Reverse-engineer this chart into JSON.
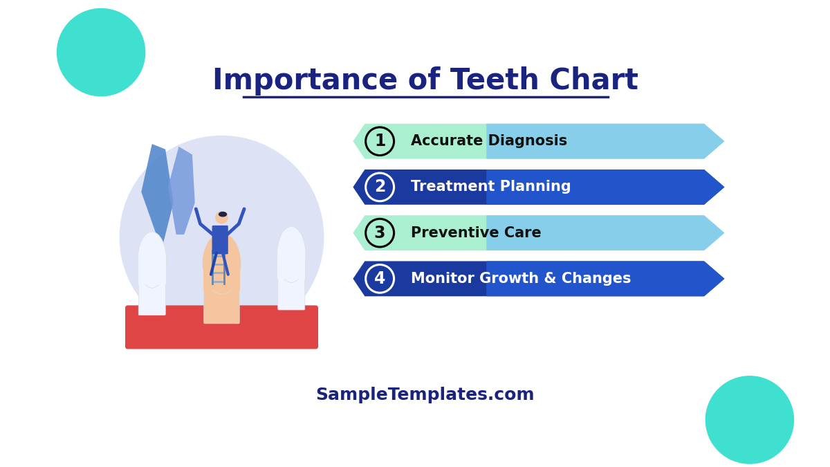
{
  "title": "Importance of Teeth Chart",
  "subtitle": "SampleTemplates.com",
  "bg_color": "#ffffff",
  "title_color": "#1a237e",
  "subtitle_color": "#1a237e",
  "teal_color": "#40e0d0",
  "items": [
    {
      "number": "1",
      "text": "Accurate Diagnosis",
      "arrow_color_left": "#aaf0d0",
      "arrow_color_right": "#87ceeb",
      "circle_edge": "#000000",
      "text_color": "#111111",
      "num_color": "#111111"
    },
    {
      "number": "2",
      "text": "Treatment Planning",
      "arrow_color_left": "#1a3a9f",
      "arrow_color_right": "#2255cc",
      "circle_edge": "#ffffff",
      "text_color": "#ffffff",
      "num_color": "#ffffff"
    },
    {
      "number": "3",
      "text": "Preventive Care",
      "arrow_color_left": "#aaf0d0",
      "arrow_color_right": "#87ceeb",
      "circle_edge": "#000000",
      "text_color": "#111111",
      "num_color": "#111111"
    },
    {
      "number": "4",
      "text": "Monitor Growth & Changes",
      "arrow_color_left": "#1a3a9f",
      "arrow_color_right": "#2255cc",
      "circle_edge": "#ffffff",
      "text_color": "#ffffff",
      "num_color": "#ffffff"
    }
  ]
}
